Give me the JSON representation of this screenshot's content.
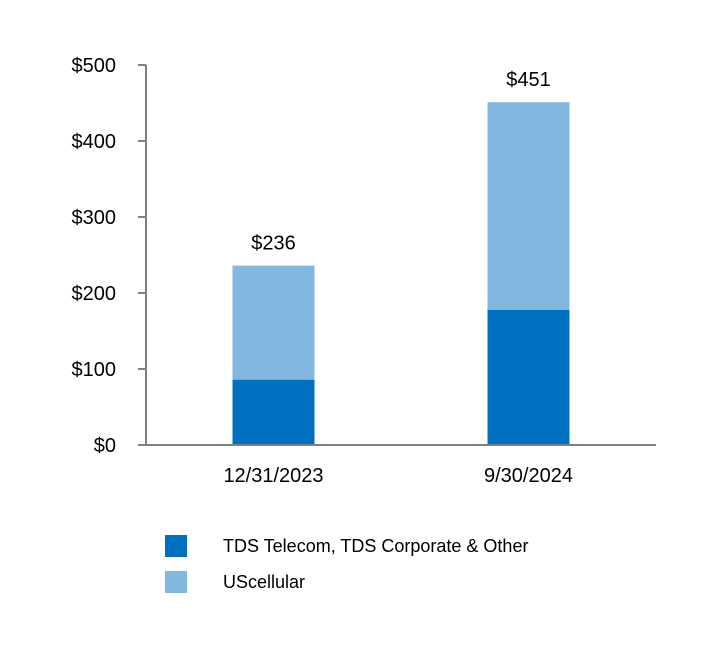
{
  "chart_data": {
    "type": "bar",
    "stacked": true,
    "categories": [
      "12/31/2023",
      "9/30/2024"
    ],
    "series": [
      {
        "name": "TDS Telecom, TDS Corporate & Other",
        "values": [
          86,
          178
        ],
        "color": "#0070c0"
      },
      {
        "name": "UScellular",
        "values": [
          150,
          273
        ],
        "color": "#82b8e0"
      }
    ],
    "totals": [
      "$236",
      "$451"
    ],
    "yticks": [
      0,
      100,
      200,
      300,
      400,
      500
    ],
    "ytick_labels": [
      "$0",
      "$100",
      "$200",
      "$300",
      "$400",
      "$500"
    ],
    "ylim": [
      0,
      500
    ],
    "title": "",
    "xlabel": "",
    "ylabel": "",
    "legend_position": "bottom"
  }
}
